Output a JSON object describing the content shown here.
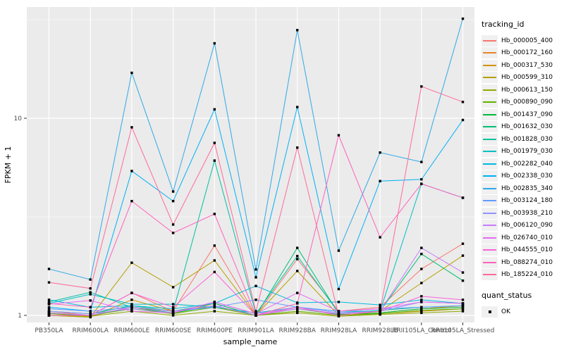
{
  "chart_data": {
    "type": "line",
    "title": "",
    "xlabel": "sample_name",
    "ylabel": "FPKM + 1",
    "y_scale": "log10",
    "y_ticks": [
      1,
      10
    ],
    "y_minor_ticks": [
      3.162,
      31.62
    ],
    "ylim": [
      0.92,
      36.5
    ],
    "grid": "on-white-over-gray-panel",
    "panel_bg": "#EBEBEB",
    "grid_color": "#FFFFFF",
    "tick_text_color": "#4D4D4D",
    "point_marker": "black-square",
    "legend_title": "tracking_id",
    "point_legend": {
      "title": "quant_status",
      "label": "OK"
    },
    "categories": [
      "PB350LA",
      "RRIM600LA",
      "RRIM600LE",
      "RRIM600SE",
      "RRIM600PE",
      "RRIM901LA",
      "RRIM928BA",
      "RRIM928LA",
      "RRIM928LB",
      "RRII105LA_Control",
      "RRII105LA_Stressed"
    ],
    "series": [
      {
        "name": "Hb_000005_400",
        "color": "#F8766D",
        "values": [
          1.05,
          1.0,
          1.3,
          1.05,
          2.26,
          1.0,
          1.93,
          1.05,
          1.1,
          1.72,
          2.31
        ]
      },
      {
        "name": "Hb_000172_160",
        "color": "#E88526",
        "values": [
          1.02,
          0.99,
          1.1,
          1.02,
          1.15,
          1.0,
          1.1,
          1.0,
          1.03,
          1.08,
          1.12
        ]
      },
      {
        "name": "Hb_000317_530",
        "color": "#D39200",
        "values": [
          1.0,
          0.98,
          1.2,
          1.05,
          1.1,
          1.0,
          1.05,
          1.0,
          1.02,
          1.05,
          1.08
        ]
      },
      {
        "name": "Hb_000599_310",
        "color": "#B79F00",
        "values": [
          1.0,
          0.98,
          1.85,
          1.39,
          1.9,
          1.0,
          1.68,
          1.0,
          1.05,
          1.46,
          2.01
        ]
      },
      {
        "name": "Hb_000613_150",
        "color": "#93AA00",
        "values": [
          1.0,
          0.99,
          1.05,
          1.0,
          1.05,
          1.0,
          1.03,
          0.99,
          1.01,
          1.03,
          1.05
        ]
      },
      {
        "name": "Hb_000890_090",
        "color": "#5EB300",
        "values": [
          1.02,
          1.0,
          1.08,
          1.02,
          1.1,
          1.0,
          1.05,
          1.0,
          1.02,
          1.06,
          1.08
        ]
      },
      {
        "name": "Hb_001437_090",
        "color": "#00BA38",
        "values": [
          1.03,
          1.0,
          1.1,
          1.03,
          1.12,
          1.0,
          1.08,
          1.01,
          1.03,
          1.08,
          1.1
        ]
      },
      {
        "name": "Hb_001632_030",
        "color": "#00BF74",
        "values": [
          1.05,
          1.02,
          1.12,
          1.05,
          1.15,
          1.0,
          2.2,
          1.02,
          1.05,
          2.05,
          1.5
        ]
      },
      {
        "name": "Hb_001828_030",
        "color": "#00C19F",
        "values": [
          1.17,
          1.31,
          1.1,
          1.05,
          6.1,
          1.02,
          2.0,
          1.03,
          1.06,
          1.1,
          1.12
        ]
      },
      {
        "name": "Hb_001979_030",
        "color": "#00BFC4",
        "values": [
          1.15,
          1.28,
          1.14,
          1.14,
          1.1,
          1.03,
          1.1,
          1.05,
          1.05,
          4.65,
          3.95
        ]
      },
      {
        "name": "Hb_002282_040",
        "color": "#00BAE0",
        "values": [
          1.2,
          1.1,
          1.12,
          1.08,
          1.15,
          1.41,
          1.16,
          1.17,
          1.13,
          1.2,
          1.15
        ]
      },
      {
        "name": "Hb_002338_030",
        "color": "#00B1F5",
        "values": [
          1.1,
          1.05,
          5.4,
          3.8,
          11.1,
          1.56,
          11.4,
          1.36,
          4.8,
          4.9,
          9.8
        ]
      },
      {
        "name": "Hb_002835_340",
        "color": "#2FA9E6",
        "values": [
          1.72,
          1.52,
          17.0,
          4.25,
          24.0,
          1.71,
          28.0,
          2.13,
          6.7,
          6.0,
          32.0
        ]
      },
      {
        "name": "Hb_003124_180",
        "color": "#619CFF",
        "values": [
          1.08,
          1.05,
          1.1,
          1.05,
          1.1,
          1.2,
          1.1,
          1.05,
          1.08,
          1.1,
          1.12
        ]
      },
      {
        "name": "Hb_003938_210",
        "color": "#9591FF",
        "values": [
          1.05,
          1.02,
          1.08,
          1.03,
          1.17,
          1.02,
          1.1,
          1.03,
          1.05,
          1.17,
          1.15
        ]
      },
      {
        "name": "Hb_006120_090",
        "color": "#C77CFF",
        "values": [
          1.03,
          1.0,
          1.1,
          1.05,
          1.12,
          1.0,
          1.08,
          1.02,
          1.05,
          2.2,
          1.65
        ]
      },
      {
        "name": "Hb_026740_010",
        "color": "#E76BF3",
        "values": [
          1.14,
          1.19,
          1.05,
          1.03,
          1.17,
          1.02,
          1.3,
          1.05,
          1.08,
          1.17,
          1.15
        ]
      },
      {
        "name": "Hb_044555_010",
        "color": "#FA62DB",
        "values": [
          1.0,
          1.0,
          1.3,
          1.1,
          1.66,
          1.0,
          1.1,
          1.0,
          1.05,
          1.25,
          1.2
        ]
      },
      {
        "name": "Hb_088274_010",
        "color": "#FF62BC",
        "values": [
          1.15,
          1.1,
          3.8,
          2.62,
          3.27,
          1.0,
          1.15,
          8.2,
          2.49,
          4.65,
          3.95
        ]
      },
      {
        "name": "Hb_185224_010",
        "color": "#FF6A98",
        "values": [
          1.47,
          1.37,
          9.0,
          2.89,
          7.5,
          1.05,
          7.1,
          1.0,
          1.05,
          14.5,
          12.1
        ]
      }
    ]
  }
}
